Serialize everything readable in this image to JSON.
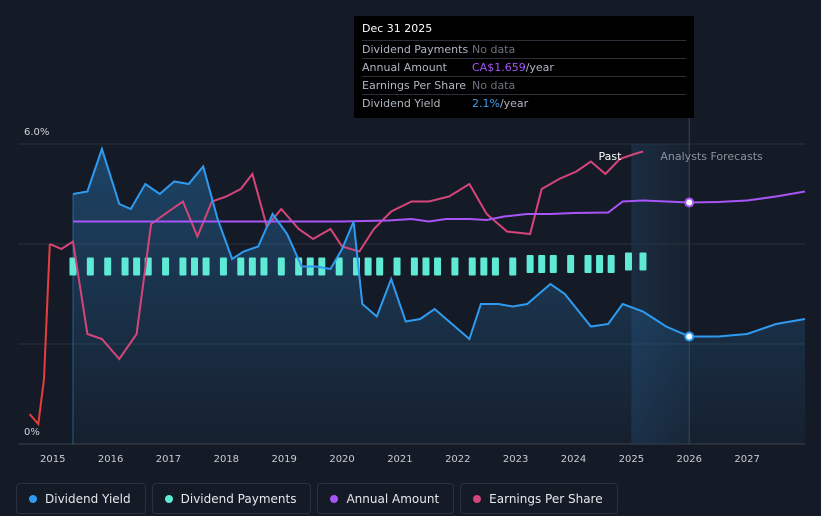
{
  "tooltip": {
    "date": "Dec 31 2025",
    "rows": [
      {
        "label": "Dividend Payments",
        "value": "No data"
      },
      {
        "label": "Annual Amount",
        "value_hl": "CA$1.659",
        "unit": "/year"
      },
      {
        "label": "Earnings Per Share",
        "value": "No data"
      },
      {
        "label": "Dividend Yield",
        "value_hl": "2.1%",
        "unit": "/year"
      }
    ]
  },
  "legend": [
    {
      "label": "Dividend Yield",
      "color": "#2f9bf0"
    },
    {
      "label": "Dividend Payments",
      "color": "#5eead4"
    },
    {
      "label": "Annual Amount",
      "color": "#a855f7"
    },
    {
      "label": "Earnings Per Share",
      "color": "#d6457a"
    }
  ],
  "chart_data": {
    "type": "line",
    "ylim": [
      0,
      6.0
    ],
    "yticks": [
      {
        "value": 6.0,
        "label": "6.0%"
      },
      {
        "value": 0,
        "label": "0%"
      }
    ],
    "xlim": [
      2014.4,
      2028.0
    ],
    "xticks": [
      "2015",
      "2016",
      "2017",
      "2018",
      "2019",
      "2020",
      "2021",
      "2022",
      "2023",
      "2024",
      "2025",
      "2026",
      "2027"
    ],
    "past_label": "Past",
    "forecast_label": "Analysts Forecasts",
    "forecast_start": 2025.0,
    "cursor_x": 2026.0,
    "colors": {
      "yield": "#2f9bf0",
      "payments": "#5eead4",
      "annual": "#a855f7",
      "eps": "#d6457a",
      "eps_negative": "#e53e3e"
    },
    "series": [
      {
        "name": "Dividend Yield",
        "key": "yield",
        "points": [
          [
            2015.35,
            5.0
          ],
          [
            2015.6,
            5.05
          ],
          [
            2015.85,
            5.9
          ],
          [
            2016.15,
            4.8
          ],
          [
            2016.35,
            4.7
          ],
          [
            2016.6,
            5.2
          ],
          [
            2016.85,
            5.0
          ],
          [
            2017.1,
            5.25
          ],
          [
            2017.35,
            5.2
          ],
          [
            2017.6,
            5.55
          ],
          [
            2017.85,
            4.5
          ],
          [
            2018.1,
            3.7
          ],
          [
            2018.3,
            3.85
          ],
          [
            2018.55,
            3.95
          ],
          [
            2018.8,
            4.6
          ],
          [
            2019.05,
            4.2
          ],
          [
            2019.3,
            3.55
          ],
          [
            2019.55,
            3.55
          ],
          [
            2019.8,
            3.5
          ],
          [
            2020.0,
            3.9
          ],
          [
            2020.2,
            4.45
          ],
          [
            2020.35,
            2.8
          ],
          [
            2020.6,
            2.55
          ],
          [
            2020.85,
            3.3
          ],
          [
            2021.1,
            2.45
          ],
          [
            2021.35,
            2.5
          ],
          [
            2021.6,
            2.7
          ],
          [
            2021.85,
            2.45
          ],
          [
            2022.2,
            2.1
          ],
          [
            2022.4,
            2.8
          ],
          [
            2022.7,
            2.8
          ],
          [
            2022.95,
            2.75
          ],
          [
            2023.2,
            2.8
          ],
          [
            2023.6,
            3.2
          ],
          [
            2023.85,
            3.0
          ],
          [
            2024.3,
            2.35
          ],
          [
            2024.6,
            2.4
          ],
          [
            2024.85,
            2.8
          ],
          [
            2025.2,
            2.65
          ],
          [
            2025.6,
            2.35
          ],
          [
            2026.0,
            2.15
          ],
          [
            2026.5,
            2.15
          ],
          [
            2027.0,
            2.2
          ],
          [
            2027.5,
            2.4
          ],
          [
            2028.0,
            2.5
          ]
        ]
      },
      {
        "name": "Dividend Payments",
        "key": "payments",
        "points": [
          [
            2015.35,
            3.55
          ],
          [
            2015.65,
            3.55
          ],
          [
            2015.95,
            3.55
          ],
          [
            2016.25,
            3.55
          ],
          [
            2016.45,
            3.55
          ],
          [
            2016.65,
            3.55
          ],
          [
            2016.95,
            3.55
          ],
          [
            2017.25,
            3.55
          ],
          [
            2017.45,
            3.55
          ],
          [
            2017.65,
            3.55
          ],
          [
            2017.95,
            3.55
          ],
          [
            2018.25,
            3.55
          ],
          [
            2018.45,
            3.55
          ],
          [
            2018.65,
            3.55
          ],
          [
            2018.95,
            3.55
          ],
          [
            2019.25,
            3.55
          ],
          [
            2019.45,
            3.55
          ],
          [
            2019.65,
            3.55
          ],
          [
            2019.95,
            3.55
          ],
          [
            2020.25,
            3.55
          ],
          [
            2020.45,
            3.55
          ],
          [
            2020.65,
            3.55
          ],
          [
            2020.95,
            3.55
          ],
          [
            2021.25,
            3.55
          ],
          [
            2021.45,
            3.55
          ],
          [
            2021.65,
            3.55
          ],
          [
            2021.95,
            3.55
          ],
          [
            2022.25,
            3.55
          ],
          [
            2022.45,
            3.55
          ],
          [
            2022.65,
            3.55
          ],
          [
            2022.95,
            3.55
          ],
          [
            2023.25,
            3.6
          ],
          [
            2023.45,
            3.6
          ],
          [
            2023.65,
            3.6
          ],
          [
            2023.95,
            3.6
          ],
          [
            2024.25,
            3.6
          ],
          [
            2024.45,
            3.6
          ],
          [
            2024.65,
            3.6
          ],
          [
            2024.95,
            3.65
          ],
          [
            2025.2,
            3.65
          ]
        ]
      },
      {
        "name": "Annual Amount",
        "key": "annual",
        "points": [
          [
            2015.35,
            4.45
          ],
          [
            2016,
            4.45
          ],
          [
            2017,
            4.45
          ],
          [
            2018,
            4.45
          ],
          [
            2019,
            4.45
          ],
          [
            2020,
            4.45
          ],
          [
            2020.8,
            4.47
          ],
          [
            2021.2,
            4.5
          ],
          [
            2021.5,
            4.45
          ],
          [
            2021.8,
            4.5
          ],
          [
            2022.2,
            4.5
          ],
          [
            2022.5,
            4.48
          ],
          [
            2022.8,
            4.55
          ],
          [
            2023.2,
            4.6
          ],
          [
            2023.6,
            4.6
          ],
          [
            2024.0,
            4.62
          ],
          [
            2024.6,
            4.63
          ],
          [
            2024.85,
            4.85
          ],
          [
            2025.2,
            4.87
          ],
          [
            2025.6,
            4.85
          ],
          [
            2026.0,
            4.83
          ],
          [
            2026.5,
            4.84
          ],
          [
            2027.0,
            4.87
          ],
          [
            2027.5,
            4.95
          ],
          [
            2028.0,
            5.05
          ]
        ]
      },
      {
        "name": "Earnings Per Share",
        "key": "eps",
        "points": [
          [
            2014.6,
            0.6
          ],
          [
            2014.75,
            0.4
          ],
          [
            2014.85,
            1.3
          ],
          [
            2014.95,
            4.0
          ],
          [
            2015.15,
            3.9
          ],
          [
            2015.35,
            4.05
          ],
          [
            2015.6,
            2.2
          ],
          [
            2015.85,
            2.1
          ],
          [
            2016.15,
            1.7
          ],
          [
            2016.45,
            2.2
          ],
          [
            2016.7,
            4.4
          ],
          [
            2017.0,
            4.65
          ],
          [
            2017.25,
            4.85
          ],
          [
            2017.5,
            4.15
          ],
          [
            2017.75,
            4.85
          ],
          [
            2018.0,
            4.95
          ],
          [
            2018.25,
            5.1
          ],
          [
            2018.45,
            5.4
          ],
          [
            2018.7,
            4.35
          ],
          [
            2018.95,
            4.7
          ],
          [
            2019.25,
            4.3
          ],
          [
            2019.5,
            4.1
          ],
          [
            2019.8,
            4.3
          ],
          [
            2020.0,
            3.95
          ],
          [
            2020.3,
            3.85
          ],
          [
            2020.55,
            4.3
          ],
          [
            2020.85,
            4.65
          ],
          [
            2021.2,
            4.85
          ],
          [
            2021.5,
            4.85
          ],
          [
            2021.85,
            4.95
          ],
          [
            2022.2,
            5.2
          ],
          [
            2022.5,
            4.6
          ],
          [
            2022.85,
            4.25
          ],
          [
            2023.25,
            4.2
          ],
          [
            2023.45,
            5.1
          ],
          [
            2023.75,
            5.3
          ],
          [
            2024.05,
            5.45
          ],
          [
            2024.3,
            5.65
          ],
          [
            2024.55,
            5.4
          ],
          [
            2024.8,
            5.7
          ],
          [
            2025.05,
            5.8
          ],
          [
            2025.2,
            5.85
          ]
        ]
      }
    ]
  }
}
